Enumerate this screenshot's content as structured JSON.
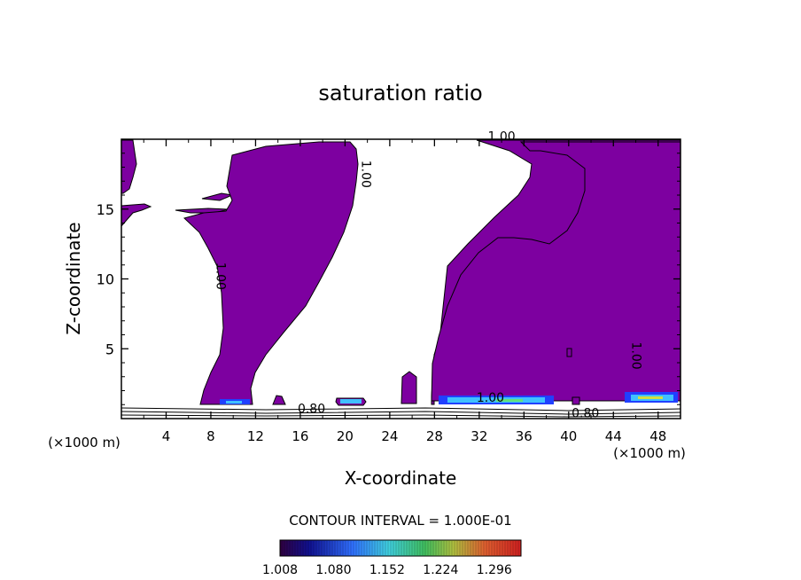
{
  "chart_data": {
    "type": "heatmap",
    "title": "saturation ratio",
    "xlabel": "X-coordinate",
    "ylabel": "Z-coordinate",
    "xlim": [
      0,
      50
    ],
    "ylim": [
      0,
      20
    ],
    "x_ticks": [
      4,
      8,
      12,
      16,
      20,
      24,
      28,
      32,
      36,
      40,
      44,
      48
    ],
    "y_ticks": [
      5,
      10,
      15
    ],
    "x_unit_left": "(×1000 m)",
    "x_unit_right": "(×1000 m)",
    "contour_labels": [
      {
        "text": "1.00",
        "x": 34,
        "z": 19.9,
        "rotate": 0
      },
      {
        "text": "1.00",
        "x": 21.5,
        "z": 17.5,
        "rotate": 90
      },
      {
        "text": "1.00",
        "x": 8.5,
        "z": 10.2,
        "rotate": 90
      },
      {
        "text": "1.00",
        "x": 45.7,
        "z": 4.5,
        "rotate": 90
      },
      {
        "text": "0.80",
        "x": 17,
        "z": 0.4,
        "rotate": 0
      },
      {
        "text": "1.00",
        "x": 33,
        "z": 1.2,
        "rotate": 0
      },
      {
        "text": "0.80",
        "x": 41.5,
        "z": 0.1,
        "rotate": 0
      }
    ],
    "contour_interval_label": "CONTOUR INTERVAL = 1.000E-01",
    "colorbar": {
      "ticks": [
        "1.008",
        "1.080",
        "1.152",
        "1.224",
        "1.296"
      ],
      "min": 1.008,
      "max": 1.332
    },
    "fill_color": "#7d00a0"
  }
}
